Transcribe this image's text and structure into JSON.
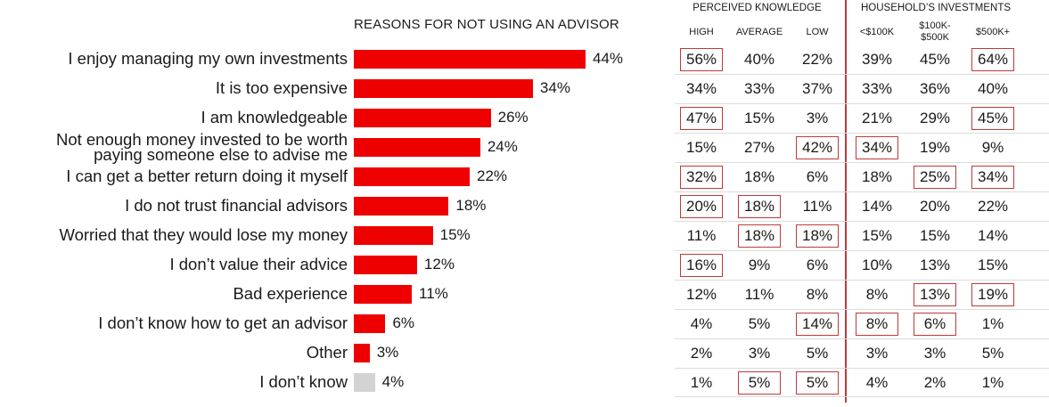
{
  "chart_data": {
    "type": "bar",
    "title": "REASONS FOR NOT USING AN ADVISOR",
    "categories": [
      "I enjoy managing my own investments",
      "It is too expensive",
      "I am knowledgeable",
      "Not enough money invested to be worth paying someone else to advise me",
      "I can get a better return doing it myself",
      "I do not trust financial advisors",
      "Worried that they would lose my money",
      "I don’t value their advice",
      "Bad experience",
      "I don’t know how to get an advisor",
      "Other",
      "I don’t know"
    ],
    "category_lines": [
      [
        "I enjoy managing my own investments"
      ],
      [
        "It is too expensive"
      ],
      [
        "I am knowledgeable"
      ],
      [
        "Not enough money invested to be worth",
        "paying someone else to advise me"
      ],
      [
        "I can get a better return doing it myself"
      ],
      [
        "I do not trust financial advisors"
      ],
      [
        "Worried that they would lose my money"
      ],
      [
        "I don’t value their advice"
      ],
      [
        "Bad experience"
      ],
      [
        "I don’t know how to get an advisor"
      ],
      [
        "Other"
      ],
      [
        "I don’t know"
      ]
    ],
    "values": [
      44,
      34,
      26,
      24,
      22,
      18,
      15,
      12,
      11,
      6,
      3,
      4
    ],
    "value_labels": [
      "44%",
      "34%",
      "26%",
      "24%",
      "22%",
      "18%",
      "15%",
      "12%",
      "11%",
      "6%",
      "3%",
      "4%"
    ],
    "bar_colors": [
      "#ee0000",
      "#ee0000",
      "#ee0000",
      "#ee0000",
      "#ee0000",
      "#ee0000",
      "#ee0000",
      "#ee0000",
      "#ee0000",
      "#ee0000",
      "#ee0000",
      "#d3d3d3"
    ],
    "xlim": [
      0,
      100
    ],
    "table": {
      "groups": [
        "PERCEIVED KNOWLEDGE",
        "HOUSEHOLD’S INVESTMENTS"
      ],
      "columns": [
        [
          "HIGH"
        ],
        [
          "AVERAGE"
        ],
        [
          "LOW"
        ],
        [
          "<$100K"
        ],
        [
          "$100K-",
          "$500K"
        ],
        [
          "$500K+"
        ]
      ],
      "rows": [
        [
          "56%",
          "40%",
          "22%",
          "39%",
          "45%",
          "64%"
        ],
        [
          "34%",
          "33%",
          "37%",
          "33%",
          "36%",
          "40%"
        ],
        [
          "47%",
          "15%",
          "3%",
          "21%",
          "29%",
          "45%"
        ],
        [
          "15%",
          "27%",
          "42%",
          "34%",
          "19%",
          "9%"
        ],
        [
          "32%",
          "18%",
          "6%",
          "18%",
          "25%",
          "34%"
        ],
        [
          "20%",
          "18%",
          "11%",
          "14%",
          "20%",
          "22%"
        ],
        [
          "11%",
          "18%",
          "18%",
          "15%",
          "15%",
          "14%"
        ],
        [
          "16%",
          "9%",
          "6%",
          "10%",
          "13%",
          "15%"
        ],
        [
          "12%",
          "11%",
          "8%",
          "8%",
          "13%",
          "19%"
        ],
        [
          "4%",
          "5%",
          "14%",
          "8%",
          "6%",
          "1%"
        ],
        [
          "2%",
          "3%",
          "5%",
          "3%",
          "3%",
          "5%"
        ],
        [
          "1%",
          "5%",
          "5%",
          "4%",
          "2%",
          "1%"
        ]
      ],
      "highlighted": [
        [
          true,
          false,
          false,
          false,
          false,
          true
        ],
        [
          false,
          false,
          false,
          false,
          false,
          false
        ],
        [
          true,
          false,
          false,
          false,
          false,
          true
        ],
        [
          false,
          false,
          true,
          true,
          false,
          false
        ],
        [
          true,
          false,
          false,
          false,
          true,
          true
        ],
        [
          true,
          true,
          false,
          false,
          false,
          false
        ],
        [
          false,
          true,
          true,
          false,
          false,
          false
        ],
        [
          true,
          false,
          false,
          false,
          false,
          false
        ],
        [
          false,
          false,
          false,
          false,
          true,
          true
        ],
        [
          false,
          false,
          true,
          true,
          true,
          false
        ],
        [
          false,
          false,
          false,
          false,
          false,
          false
        ],
        [
          false,
          true,
          true,
          false,
          false,
          false
        ]
      ],
      "highlight_color": "#c0393b"
    }
  }
}
